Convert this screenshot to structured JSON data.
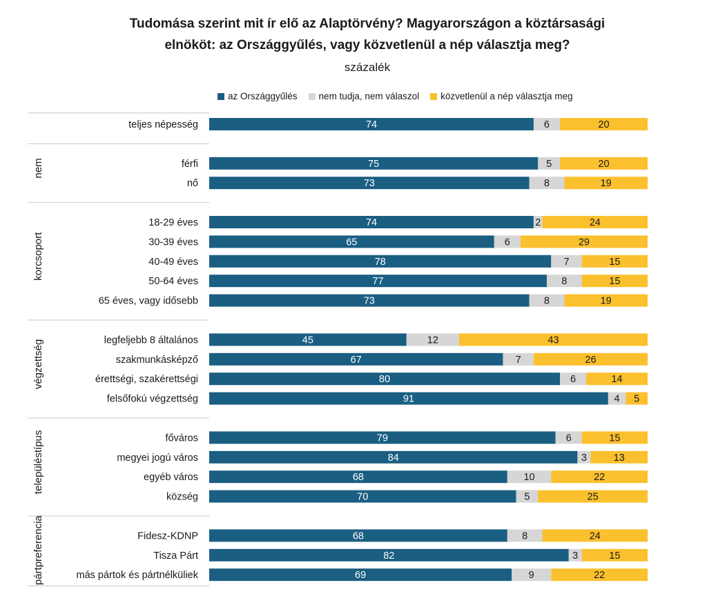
{
  "chart_data": {
    "type": "bar",
    "orientation": "horizontal",
    "stacked": true,
    "title_line1": "Tudomása szerint mit ír elő az Alaptörvény? Magyarországon  a köztársasági",
    "title_line2": "elnököt: az Országgyűlés, vagy közvetlenül a nép választja meg?",
    "subtitle": "százalék",
    "xlim": [
      0,
      100
    ],
    "legend_position": "top",
    "series": [
      {
        "name": "az Országgyűlés",
        "color": "#1a5e82"
      },
      {
        "name": "nem tudja, nem válaszol",
        "color": "#d6d6d6"
      },
      {
        "name": "közvetlenül a nép választja meg",
        "color": "#fbc02d"
      }
    ],
    "groups": [
      {
        "label": "",
        "rows": [
          {
            "label": "teljes népesség",
            "values": [
              74,
              6,
              20
            ]
          }
        ]
      },
      {
        "label": "nem",
        "rows": [
          {
            "label": "férfi",
            "values": [
              75,
              5,
              20
            ]
          },
          {
            "label": "nő",
            "values": [
              73,
              8,
              19
            ]
          }
        ]
      },
      {
        "label": "korcsoport",
        "rows": [
          {
            "label": "18-29 éves",
            "values": [
              74,
              2,
              24
            ]
          },
          {
            "label": "30-39 éves",
            "values": [
              65,
              6,
              29
            ]
          },
          {
            "label": "40-49 éves",
            "values": [
              78,
              7,
              15
            ]
          },
          {
            "label": "50-64 éves",
            "values": [
              77,
              8,
              15
            ]
          },
          {
            "label": "65 éves, vagy idősebb",
            "values": [
              73,
              8,
              19
            ]
          }
        ]
      },
      {
        "label": "végzettség",
        "rows": [
          {
            "label": "legfeljebb 8 általános",
            "values": [
              45,
              12,
              43
            ]
          },
          {
            "label": "szakmunkásképző",
            "values": [
              67,
              7,
              26
            ]
          },
          {
            "label": "érettségi, szakérettségi",
            "values": [
              80,
              6,
              14
            ]
          },
          {
            "label": "felsőfokú végzettség",
            "values": [
              91,
              4,
              5
            ]
          }
        ]
      },
      {
        "label": "településtípus",
        "rows": [
          {
            "label": "főváros",
            "values": [
              79,
              6,
              15
            ]
          },
          {
            "label": "megyei jogú város",
            "values": [
              84,
              3,
              13
            ]
          },
          {
            "label": "egyéb város",
            "values": [
              68,
              10,
              22
            ]
          },
          {
            "label": "község",
            "values": [
              70,
              5,
              25
            ]
          }
        ]
      },
      {
        "label": "pártpreferencia",
        "rows": [
          {
            "label": "Fidesz-KDNP",
            "values": [
              68,
              8,
              24
            ]
          },
          {
            "label": "Tisza Párt",
            "values": [
              82,
              3,
              15
            ]
          },
          {
            "label": "más pártok és pártnélküliek",
            "values": [
              69,
              9,
              22
            ]
          }
        ]
      }
    ]
  }
}
